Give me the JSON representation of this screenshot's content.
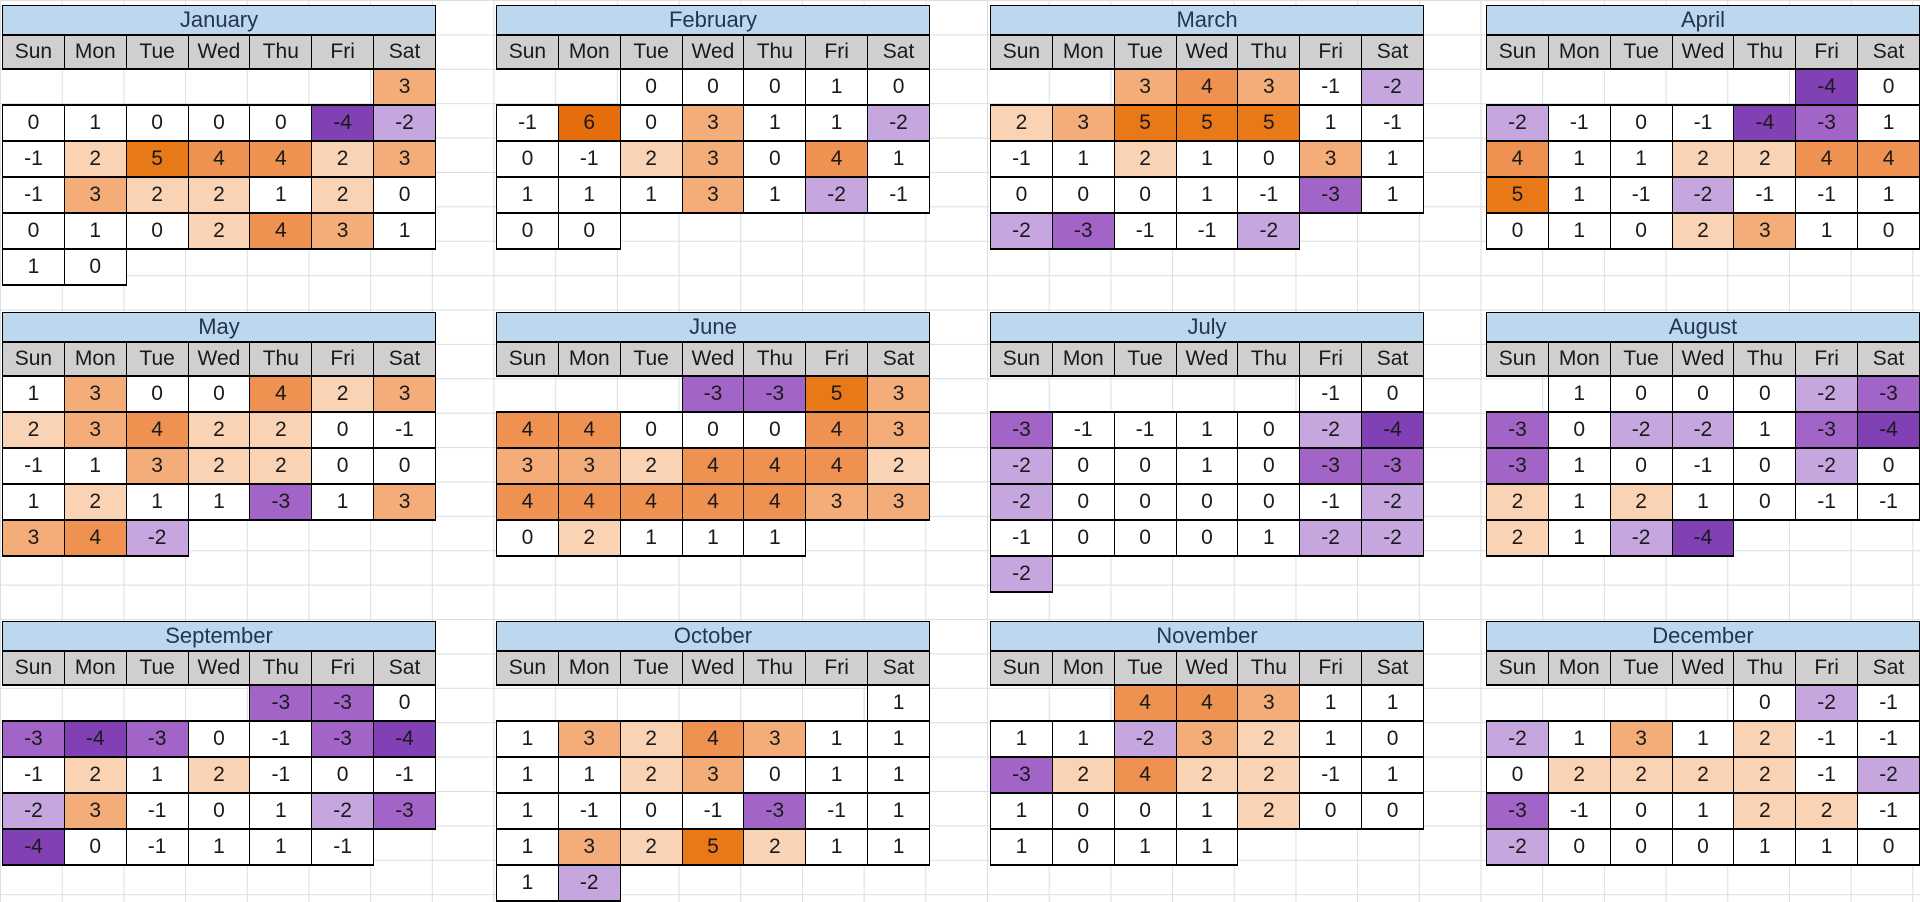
{
  "chart_data": {
    "type": "heatmap",
    "subtype": "calendar-year-heatmap",
    "title": "",
    "day_headers": [
      "Sun",
      "Mon",
      "Tue",
      "Wed",
      "Thu",
      "Fri",
      "Sat"
    ],
    "legend": "none",
    "value_range": [
      -4,
      6
    ],
    "colors": {
      "title_bg": "#BDD7EE",
      "title_text": "#24364F",
      "day_header_bg": "#D0CECE",
      "cell_border": "#000000",
      "gridline": "#DCDEDF",
      "value_fill": {
        "6": "#E56D0C",
        "5": "#E87818",
        "4": "#EF9150",
        "3": "#F4AC79",
        "2": "#FAD2B4",
        "1": "#FFFFFF",
        "0": "#FFFFFF",
        "-1": "#FFFFFF",
        "-2": "#C6A6DF",
        "-3": "#A264C6",
        "-4": "#8140B3"
      }
    },
    "months": [
      {
        "name": "January",
        "weeks": [
          [
            null,
            null,
            null,
            null,
            null,
            null,
            3
          ],
          [
            0,
            1,
            0,
            0,
            0,
            -4,
            -2
          ],
          [
            -1,
            2,
            5,
            4,
            4,
            2,
            3
          ],
          [
            -1,
            3,
            2,
            2,
            1,
            2,
            0
          ],
          [
            0,
            1,
            0,
            2,
            4,
            3,
            1
          ],
          [
            1,
            0,
            null,
            null,
            null,
            null,
            null
          ]
        ]
      },
      {
        "name": "February",
        "weeks": [
          [
            null,
            null,
            0,
            0,
            0,
            1,
            0
          ],
          [
            -1,
            6,
            0,
            3,
            1,
            1,
            -2
          ],
          [
            0,
            -1,
            2,
            3,
            0,
            4,
            1
          ],
          [
            1,
            1,
            1,
            3,
            1,
            -2,
            -1
          ],
          [
            0,
            0,
            null,
            null,
            null,
            null,
            null
          ]
        ]
      },
      {
        "name": "March",
        "weeks": [
          [
            null,
            null,
            3,
            4,
            3,
            -1,
            -2
          ],
          [
            2,
            3,
            5,
            5,
            5,
            1,
            -1
          ],
          [
            -1,
            1,
            2,
            1,
            0,
            3,
            1
          ],
          [
            0,
            0,
            0,
            1,
            -1,
            -3,
            1
          ],
          [
            -2,
            -3,
            -1,
            -1,
            -2,
            null,
            null
          ]
        ]
      },
      {
        "name": "April",
        "weeks": [
          [
            null,
            null,
            null,
            null,
            null,
            -4,
            0
          ],
          [
            -2,
            -1,
            0,
            -1,
            -4,
            -3,
            1
          ],
          [
            4,
            1,
            1,
            2,
            2,
            4,
            4
          ],
          [
            5,
            1,
            -1,
            -2,
            -1,
            -1,
            1
          ],
          [
            0,
            1,
            0,
            2,
            3,
            1,
            0
          ]
        ]
      },
      {
        "name": "May",
        "weeks": [
          [
            1,
            3,
            0,
            0,
            4,
            2,
            3
          ],
          [
            2,
            3,
            4,
            2,
            2,
            0,
            -1
          ],
          [
            -1,
            1,
            3,
            2,
            2,
            0,
            0
          ],
          [
            1,
            2,
            1,
            1,
            -3,
            1,
            3
          ],
          [
            3,
            4,
            -2,
            null,
            null,
            null,
            null
          ]
        ]
      },
      {
        "name": "June",
        "weeks": [
          [
            null,
            null,
            null,
            -3,
            -3,
            5,
            3
          ],
          [
            4,
            4,
            0,
            0,
            0,
            4,
            3
          ],
          [
            3,
            3,
            2,
            4,
            4,
            4,
            2
          ],
          [
            4,
            4,
            4,
            4,
            4,
            3,
            3
          ],
          [
            0,
            2,
            1,
            1,
            1,
            null,
            null
          ]
        ]
      },
      {
        "name": "July",
        "weeks": [
          [
            null,
            null,
            null,
            null,
            null,
            -1,
            0
          ],
          [
            -3,
            -1,
            -1,
            1,
            0,
            -2,
            -4
          ],
          [
            -2,
            0,
            0,
            1,
            0,
            -3,
            -3
          ],
          [
            -2,
            0,
            0,
            0,
            0,
            -1,
            -2
          ],
          [
            -1,
            0,
            0,
            0,
            1,
            -2,
            -2
          ],
          [
            -2,
            null,
            null,
            null,
            null,
            null,
            null
          ]
        ]
      },
      {
        "name": "August",
        "weeks": [
          [
            null,
            1,
            0,
            0,
            0,
            -2,
            -3
          ],
          [
            -3,
            0,
            -2,
            -2,
            1,
            -3,
            -4
          ],
          [
            -3,
            1,
            0,
            -1,
            0,
            -2,
            0
          ],
          [
            2,
            1,
            2,
            1,
            0,
            -1,
            -1
          ],
          [
            2,
            1,
            -2,
            -4,
            null,
            null,
            null
          ]
        ]
      },
      {
        "name": "September",
        "weeks": [
          [
            null,
            null,
            null,
            null,
            -3,
            -3,
            0
          ],
          [
            -3,
            -4,
            -3,
            0,
            -1,
            -3,
            -4
          ],
          [
            -1,
            2,
            1,
            2,
            -1,
            0,
            -1
          ],
          [
            -2,
            3,
            -1,
            0,
            1,
            -2,
            -3
          ],
          [
            -4,
            0,
            -1,
            1,
            1,
            -1,
            null
          ]
        ]
      },
      {
        "name": "October",
        "weeks": [
          [
            null,
            null,
            null,
            null,
            null,
            null,
            1
          ],
          [
            1,
            3,
            2,
            4,
            3,
            1,
            1
          ],
          [
            1,
            1,
            2,
            3,
            0,
            1,
            1
          ],
          [
            1,
            -1,
            0,
            -1,
            -3,
            -1,
            1
          ],
          [
            1,
            3,
            2,
            5,
            2,
            1,
            1
          ],
          [
            1,
            -2,
            null,
            null,
            null,
            null,
            null
          ]
        ]
      },
      {
        "name": "November",
        "weeks": [
          [
            null,
            null,
            4,
            4,
            3,
            1,
            1
          ],
          [
            1,
            1,
            -2,
            3,
            2,
            1,
            0
          ],
          [
            -3,
            2,
            4,
            2,
            2,
            -1,
            1
          ],
          [
            1,
            0,
            0,
            1,
            2,
            0,
            0
          ],
          [
            1,
            0,
            1,
            1,
            null,
            null,
            null
          ]
        ]
      },
      {
        "name": "December",
        "weeks": [
          [
            null,
            null,
            null,
            null,
            0,
            -2,
            -1
          ],
          [
            -2,
            1,
            3,
            1,
            2,
            -1,
            -1
          ],
          [
            0,
            2,
            2,
            2,
            2,
            -1,
            -2
          ],
          [
            -3,
            -1,
            0,
            1,
            2,
            2,
            -1
          ],
          [
            -2,
            0,
            0,
            0,
            1,
            1,
            0
          ]
        ]
      }
    ]
  }
}
